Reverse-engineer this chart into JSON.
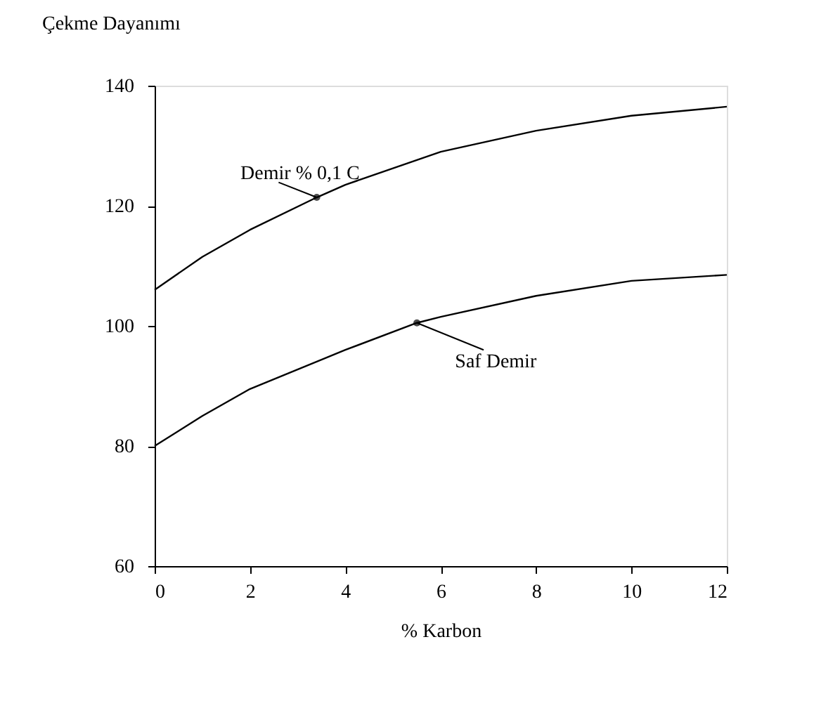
{
  "chart_data": {
    "type": "line",
    "ylabel": "Çekme Dayanımı",
    "xlabel": "% Karbon",
    "xlim": [
      0,
      12
    ],
    "xticks": [
      0,
      2,
      4,
      6,
      8,
      10,
      12
    ],
    "ylim": [
      60,
      140
    ],
    "yticks": [
      60,
      80,
      100,
      120,
      140
    ],
    "grid": false,
    "marker": "none",
    "line_style": "solid",
    "series": [
      {
        "color": "#000000",
        "x": [
          0,
          1,
          2,
          3.4,
          4,
          6,
          8,
          10,
          12
        ],
        "values": [
          106,
          111.5,
          116,
          121.4,
          123.5,
          129,
          132.5,
          135,
          136.5
        ]
      },
      {
        "color": "#000000",
        "x": [
          0,
          1,
          2,
          4,
          5.5,
          6,
          8,
          10,
          12
        ],
        "values": [
          80,
          85,
          89.5,
          96,
          100.5,
          101.5,
          105,
          107.5,
          108.5
        ]
      }
    ],
    "annotations": [
      {
        "text": "Demir % 0,1 C",
        "x": 3.4,
        "y": 121.4
      },
      {
        "text": "Saf Demir",
        "x": 5.5,
        "y": 100.5
      }
    ]
  }
}
